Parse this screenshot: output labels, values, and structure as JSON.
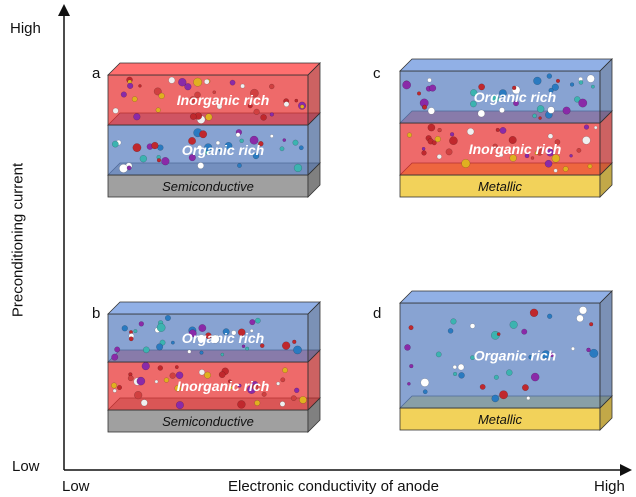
{
  "axes": {
    "y_high": "High",
    "y_low": "Low",
    "y_label": "Preconditioning current",
    "x_low": "Low",
    "x_high": "High",
    "x_label": "Electronic conductivity of anode"
  },
  "colors": {
    "organic": "#5a7fc0",
    "inorganic": "#e83030",
    "semiconductive": "#a0a0a0",
    "metallic": "#f2d25a"
  },
  "panels": [
    {
      "id": "a",
      "label": "a",
      "substrate": {
        "label": "Semiconductive",
        "kind": "semiconductive"
      },
      "layers": [
        {
          "label": "Organic rich",
          "kind": "organic"
        },
        {
          "label": "Inorganic rich",
          "kind": "inorganic"
        }
      ]
    },
    {
      "id": "b",
      "label": "b",
      "substrate": {
        "label": "Semiconductive",
        "kind": "semiconductive"
      },
      "layers": [
        {
          "label": "Inorganic rich",
          "kind": "inorganic"
        },
        {
          "label": "Organic rich",
          "kind": "organic"
        }
      ]
    },
    {
      "id": "c",
      "label": "c",
      "substrate": {
        "label": "Metallic",
        "kind": "metallic"
      },
      "layers": [
        {
          "label": "Inorganic rich",
          "kind": "inorganic"
        },
        {
          "label": "Organic rich",
          "kind": "organic"
        }
      ]
    },
    {
      "id": "d",
      "label": "d",
      "substrate": {
        "label": "Metallic",
        "kind": "metallic"
      },
      "layers": [
        {
          "label": "Organic rich",
          "kind": "organic"
        }
      ]
    }
  ]
}
